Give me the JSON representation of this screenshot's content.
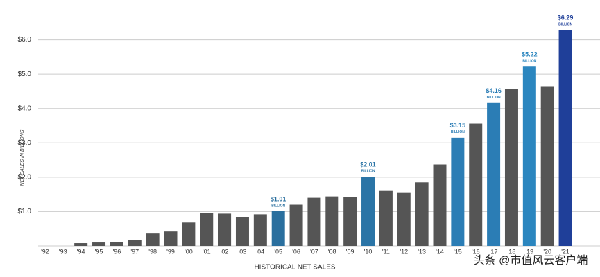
{
  "chart_data": {
    "type": "bar",
    "ylabel": "NET SALES IN BILLIONS",
    "xlabel": "HISTORICAL NET SALES",
    "watermark": "头条 @市值风云客户端",
    "categories": [
      "'92",
      "'93",
      "'94",
      "'95",
      "'96",
      "'97",
      "'98",
      "'99",
      "'00",
      "'01",
      "'02",
      "'03",
      "'04",
      "'05",
      "'06",
      "'07",
      "'08",
      "'09",
      "'10",
      "'11",
      "'12",
      "'13",
      "'14",
      "'15",
      "'16",
      "'17",
      "'18",
      "'19",
      "'20",
      "'21"
    ],
    "values": [
      null,
      null,
      0.08,
      0.1,
      0.12,
      0.18,
      0.36,
      0.42,
      0.68,
      0.96,
      0.94,
      0.84,
      0.92,
      1.01,
      1.2,
      1.4,
      1.44,
      1.42,
      2.01,
      1.6,
      1.56,
      1.85,
      2.37,
      3.15,
      3.56,
      4.16,
      4.57,
      5.22,
      4.65,
      6.29
    ],
    "value_labels": [
      null,
      null,
      null,
      null,
      null,
      null,
      null,
      null,
      null,
      null,
      null,
      null,
      null,
      "$1.01",
      null,
      null,
      null,
      null,
      "$2.01",
      null,
      null,
      null,
      null,
      "$3.15",
      null,
      "$4.16",
      null,
      "$5.22",
      null,
      "$6.29"
    ],
    "value_label_unit": "BILLION",
    "colors": [
      "#555",
      "#555",
      "#555",
      "#555",
      "#555",
      "#555",
      "#555",
      "#555",
      "#555",
      "#555",
      "#555",
      "#555",
      "#555",
      "#2a6f9e",
      "#555",
      "#555",
      "#555",
      "#555",
      "#2a74a6",
      "#555",
      "#555",
      "#555",
      "#555",
      "#2b7db5",
      "#555",
      "#2b7db5",
      "#555",
      "#2b86bf",
      "#555",
      "#1f3f99"
    ],
    "ylim": [
      0,
      7
    ],
    "yticks": [
      {
        "value": 1,
        "label": "$1.0"
      },
      {
        "value": 2,
        "label": "$2.0"
      },
      {
        "value": 3,
        "label": "$3.0"
      },
      {
        "value": 4,
        "label": "$4.0"
      },
      {
        "value": 5,
        "label": "$5.0"
      },
      {
        "value": 6,
        "label": "$6.0"
      }
    ],
    "grid": true
  }
}
